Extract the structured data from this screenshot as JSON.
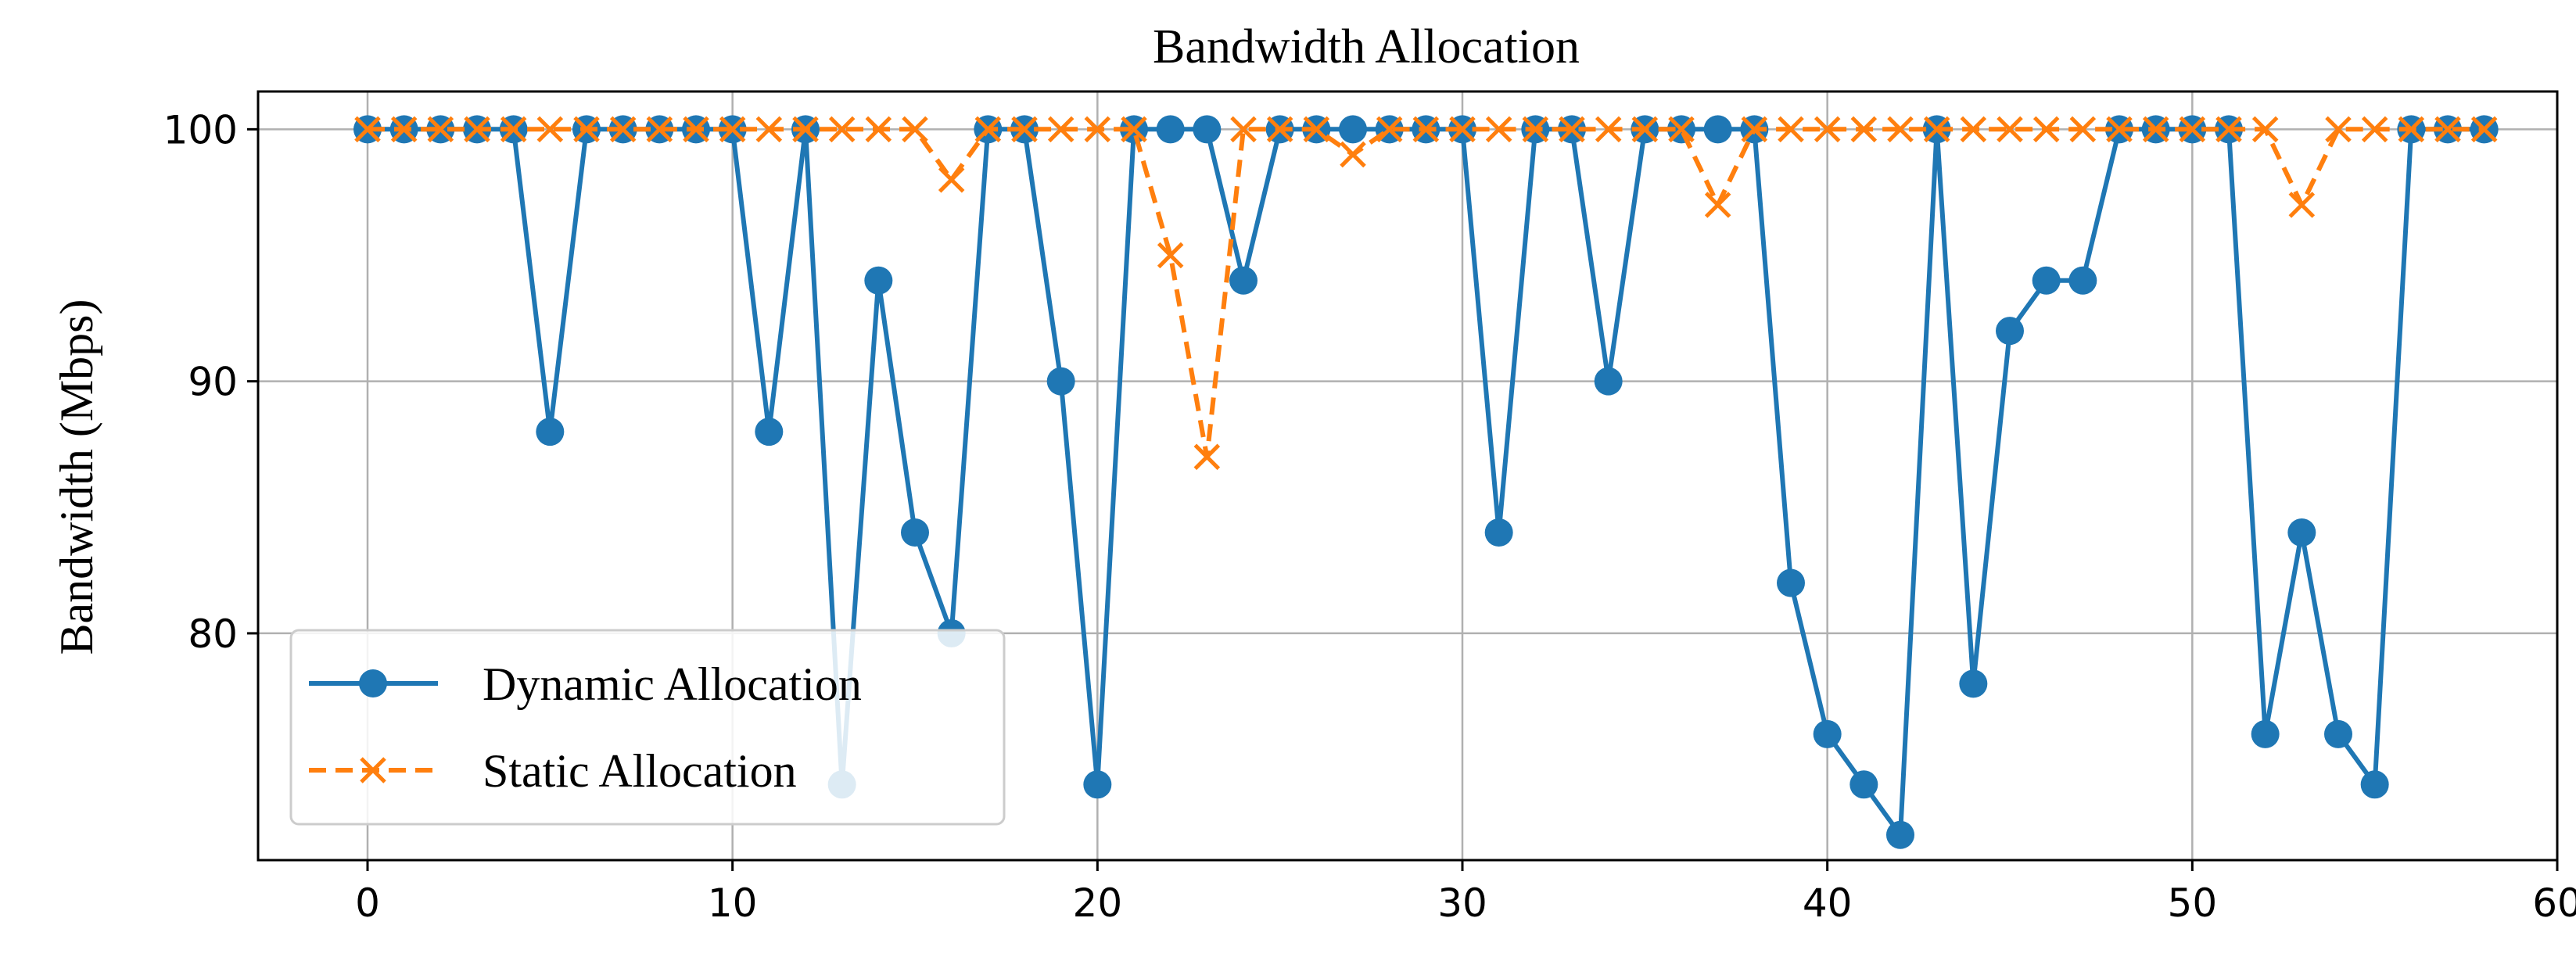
{
  "chart_data": {
    "type": "line",
    "title": "Bandwidth Allocation",
    "xlabel": "",
    "ylabel": "Bandwidth (Mbps)",
    "xlim": [
      -3,
      60
    ],
    "ylim": [
      71,
      101.5
    ],
    "xticks": [
      0,
      10,
      20,
      30,
      40,
      50,
      60
    ],
    "xtick_labels": [
      "0",
      "10",
      "20",
      "30",
      "40",
      "50",
      "60"
    ],
    "yticks": [
      80,
      90,
      100
    ],
    "ytick_labels": [
      "80",
      "90",
      "100"
    ],
    "grid": true,
    "legend_position": "lower-left",
    "x": [
      0,
      1,
      2,
      3,
      4,
      5,
      6,
      7,
      8,
      9,
      10,
      11,
      12,
      13,
      14,
      15,
      16,
      17,
      18,
      19,
      20,
      21,
      22,
      23,
      24,
      25,
      26,
      27,
      28,
      29,
      30,
      31,
      32,
      33,
      34,
      35,
      36,
      37,
      38,
      39,
      40,
      41,
      42,
      43,
      44,
      45,
      46,
      47,
      48,
      49,
      50,
      51,
      52,
      53,
      54,
      55,
      56,
      57,
      58
    ],
    "series": [
      {
        "name": "Dynamic Allocation",
        "color": "#1f77b4",
        "marker": "circle",
        "linestyle": "solid",
        "values": [
          100,
          100,
          100,
          100,
          100,
          88,
          100,
          100,
          100,
          100,
          100,
          88,
          100,
          74,
          94,
          84,
          80,
          100,
          100,
          90,
          74,
          100,
          100,
          100,
          94,
          100,
          100,
          100,
          100,
          100,
          100,
          84,
          100,
          100,
          90,
          100,
          100,
          100,
          100,
          82,
          76,
          74,
          72,
          100,
          78,
          92,
          94,
          94,
          100,
          100,
          100,
          100,
          76,
          84,
          76,
          74,
          100,
          100,
          100
        ]
      },
      {
        "name": "Static Allocation",
        "color": "#ff7f0e",
        "marker": "x",
        "linestyle": "dashed",
        "values": [
          100,
          100,
          100,
          100,
          100,
          100,
          100,
          100,
          100,
          100,
          100,
          100,
          100,
          100,
          100,
          100,
          98,
          100,
          100,
          100,
          100,
          100,
          95,
          87,
          100,
          100,
          100,
          99,
          100,
          100,
          100,
          100,
          100,
          100,
          100,
          100,
          100,
          97,
          100,
          100,
          100,
          100,
          100,
          100,
          100,
          100,
          100,
          100,
          100,
          100,
          100,
          100,
          100,
          97,
          100,
          100,
          100,
          100,
          100
        ]
      }
    ]
  }
}
